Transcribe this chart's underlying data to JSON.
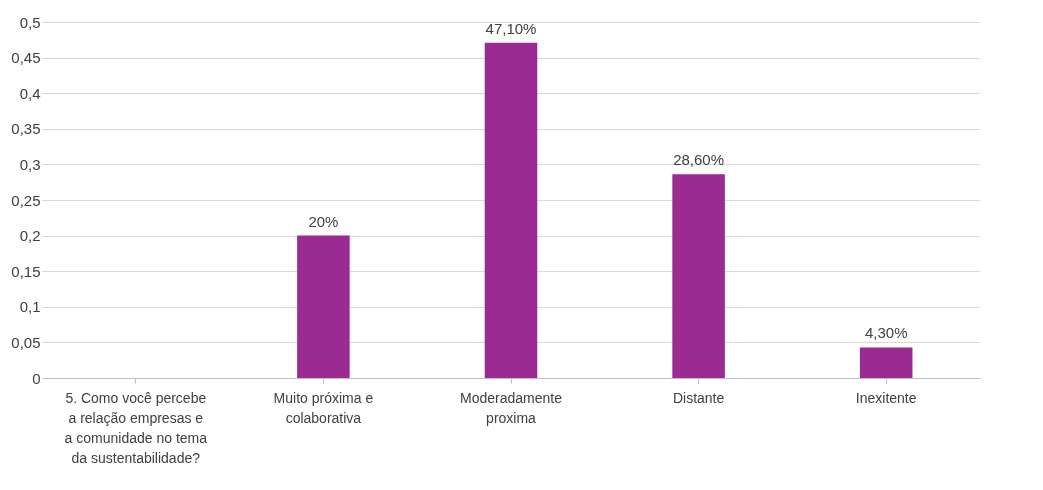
{
  "chart_data": {
    "type": "bar",
    "categories": [
      "5. Como você percebe a relação empresas e a comunidade no tema da sustentabilidade?",
      "Muito próxima e colaborativa",
      "Moderadamente proxima",
      "Distante",
      "Inexitente"
    ],
    "values": [
      null,
      0.2,
      0.471,
      0.286,
      0.043
    ],
    "value_labels": [
      null,
      "20%",
      "47,10%",
      "28,60%",
      "4,30%"
    ],
    "color": "#9b2a93",
    "ylim": [
      0,
      0.5
    ],
    "yticks": [
      0,
      {
        "value": 0.05,
        "label": "0,05"
      },
      {
        "value": 0.1,
        "label": "0,1"
      },
      {
        "value": 0.15,
        "label": "0,15"
      },
      {
        "value": 0.2,
        "label": "0,2"
      },
      {
        "value": 0.25,
        "label": "0,25"
      },
      {
        "value": 0.3,
        "label": "0,3"
      },
      {
        "value": 0.35,
        "label": "0,35"
      },
      {
        "value": 0.4,
        "label": "0,4"
      },
      {
        "value": 0.45,
        "label": "0,45"
      },
      {
        "value": 0.5,
        "label": "0,5"
      }
    ],
    "grid": "y"
  }
}
